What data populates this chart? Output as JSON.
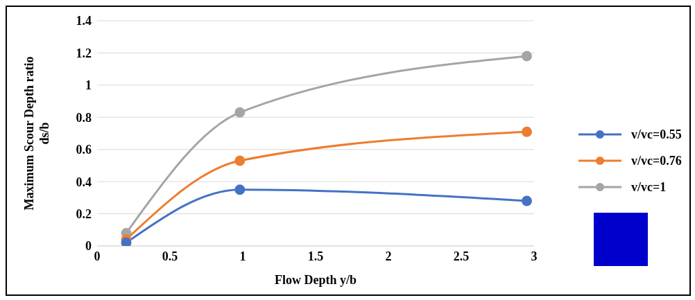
{
  "chart_data": {
    "type": "line",
    "xlabel": "Flow Depth y/b",
    "ylabel": "Maximum Scour Depth ratio ds/b",
    "x": [
      0.2,
      0.98,
      2.95
    ],
    "series": [
      {
        "name": "v/vc=0.55",
        "color": "#4472c4",
        "values": [
          0.02,
          0.35,
          0.28
        ]
      },
      {
        "name": "v/vc=0.76",
        "color": "#ed7d31",
        "values": [
          0.04,
          0.53,
          0.71
        ]
      },
      {
        "name": "v/vc=1",
        "color": "#a5a5a5",
        "values": [
          0.08,
          0.83,
          1.18
        ]
      }
    ],
    "xlim": [
      0,
      3
    ],
    "xticks": [
      0,
      0.5,
      1,
      1.5,
      2,
      2.5,
      3
    ],
    "ylim": [
      0,
      1.4
    ],
    "yticks": [
      0,
      0.2,
      0.4,
      0.6,
      0.8,
      1,
      1.2,
      1.4
    ],
    "grid": "y",
    "legend": "right",
    "marker": "circle",
    "line_style": "solid"
  }
}
